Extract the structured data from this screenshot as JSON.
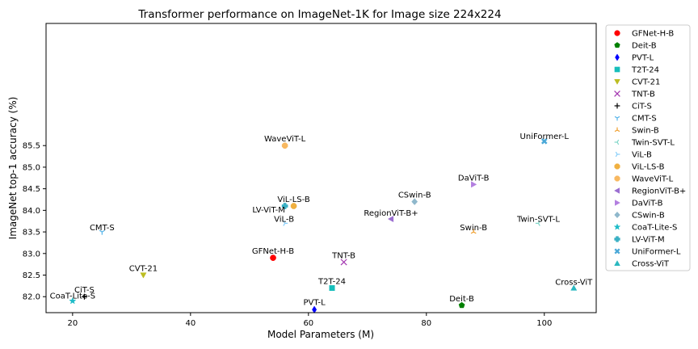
{
  "chart_data": {
    "type": "scatter",
    "title": "Transformer performance on ImageNet-1K for Image size 224x224",
    "xlabel": "Model Parameters (M)",
    "ylabel": "ImageNet top-1 accuracy (%)",
    "xlim": [
      15.5,
      108.8
    ],
    "ylim": [
      81.63,
      88.33
    ],
    "xticks": [
      "20",
      "40",
      "60",
      "80",
      "100"
    ],
    "yticks": [
      "82.0",
      "82.5",
      "83.0",
      "83.5",
      "84.0",
      "84.5",
      "85.0",
      "85.5"
    ],
    "legend_position": "outside-right",
    "grid": false,
    "series": [
      {
        "name": "GFNet-H-B",
        "x": 54,
        "y": 82.9,
        "color": "#ff0000",
        "marker": "circle",
        "label": "GFNet-H-B"
      },
      {
        "name": "Deit-B",
        "x": 86,
        "y": 81.8,
        "color": "#008000",
        "marker": "pentagon",
        "label": "Deit-B"
      },
      {
        "name": "PVT-L",
        "x": 61,
        "y": 81.7,
        "color": "#0000ff",
        "marker": "diamond",
        "label": "PVT-L"
      },
      {
        "name": "T2T-24",
        "x": 64,
        "y": 82.2,
        "color": "#17bebb",
        "marker": "square",
        "label": "T2T-24"
      },
      {
        "name": "CVT-21",
        "x": 32,
        "y": 82.5,
        "color": "#bcbd22",
        "marker": "triangle-down",
        "label": "CVT-21"
      },
      {
        "name": "TNT-B",
        "x": 66,
        "y": 82.8,
        "color": "#a335b0",
        "marker": "x",
        "label": "TNT-B"
      },
      {
        "name": "CiT-S",
        "x": 22,
        "y": 82.0,
        "color": "#000000",
        "marker": "plus",
        "label": "CiT-S"
      },
      {
        "name": "CMT-S",
        "x": 25,
        "y": 83.5,
        "color": "#56b4e9",
        "marker": "tri-down",
        "label": "CMT-S"
      },
      {
        "name": "Swin-B",
        "x": 88,
        "y": 83.5,
        "color": "#f0a030",
        "marker": "tri-up",
        "label": "Swin-B"
      },
      {
        "name": "Twin-SVT-L",
        "x": 99,
        "y": 83.7,
        "color": "#7fd6c8",
        "marker": "tri-left",
        "label": "Twin-SVT-L"
      },
      {
        "name": "ViL-B",
        "x": 56,
        "y": 83.7,
        "color": "#87cefa",
        "marker": "tri-right",
        "label": "ViL-B"
      },
      {
        "name": "ViL-LS-B",
        "x": 57.5,
        "y": 84.1,
        "color": "#f0b040",
        "marker": "octagon",
        "label": "ViL-LS-B"
      },
      {
        "name": "WaveViT-L",
        "x": 56,
        "y": 85.5,
        "color": "#f8b860",
        "marker": "octagon",
        "label": "WaveViT-L"
      },
      {
        "name": "RegionViT-B+",
        "x": 74,
        "y": 83.8,
        "color": "#9b6fd1",
        "marker": "triangle-left",
        "label": "RegionViT-B+"
      },
      {
        "name": "DaViT-B",
        "x": 88,
        "y": 84.6,
        "color": "#b37fe0",
        "marker": "triangle-right",
        "label": "DaViT-B"
      },
      {
        "name": "CSwin-B",
        "x": 78,
        "y": 84.2,
        "color": "#8fb8cc",
        "marker": "diamond-thin",
        "label": "CSwin-B"
      },
      {
        "name": "CoaT-Lite-S",
        "x": 20,
        "y": 81.9,
        "color": "#1fbcc8",
        "marker": "star",
        "label": "CoaT-Lite-S"
      },
      {
        "name": "LV-ViT-M",
        "x": 56,
        "y": 84.1,
        "color": "#3ab0c4",
        "marker": "plus-filled",
        "label": "LV-ViT-M"
      },
      {
        "name": "UniFormer-L",
        "x": 100,
        "y": 85.6,
        "color": "#4aa8d8",
        "marker": "x-filled",
        "label": "UniFormer-L"
      },
      {
        "name": "Cross-ViT",
        "x": 105,
        "y": 82.2,
        "color": "#2ab8c0",
        "marker": "triangle-up",
        "label": "Cross-ViT"
      }
    ]
  }
}
